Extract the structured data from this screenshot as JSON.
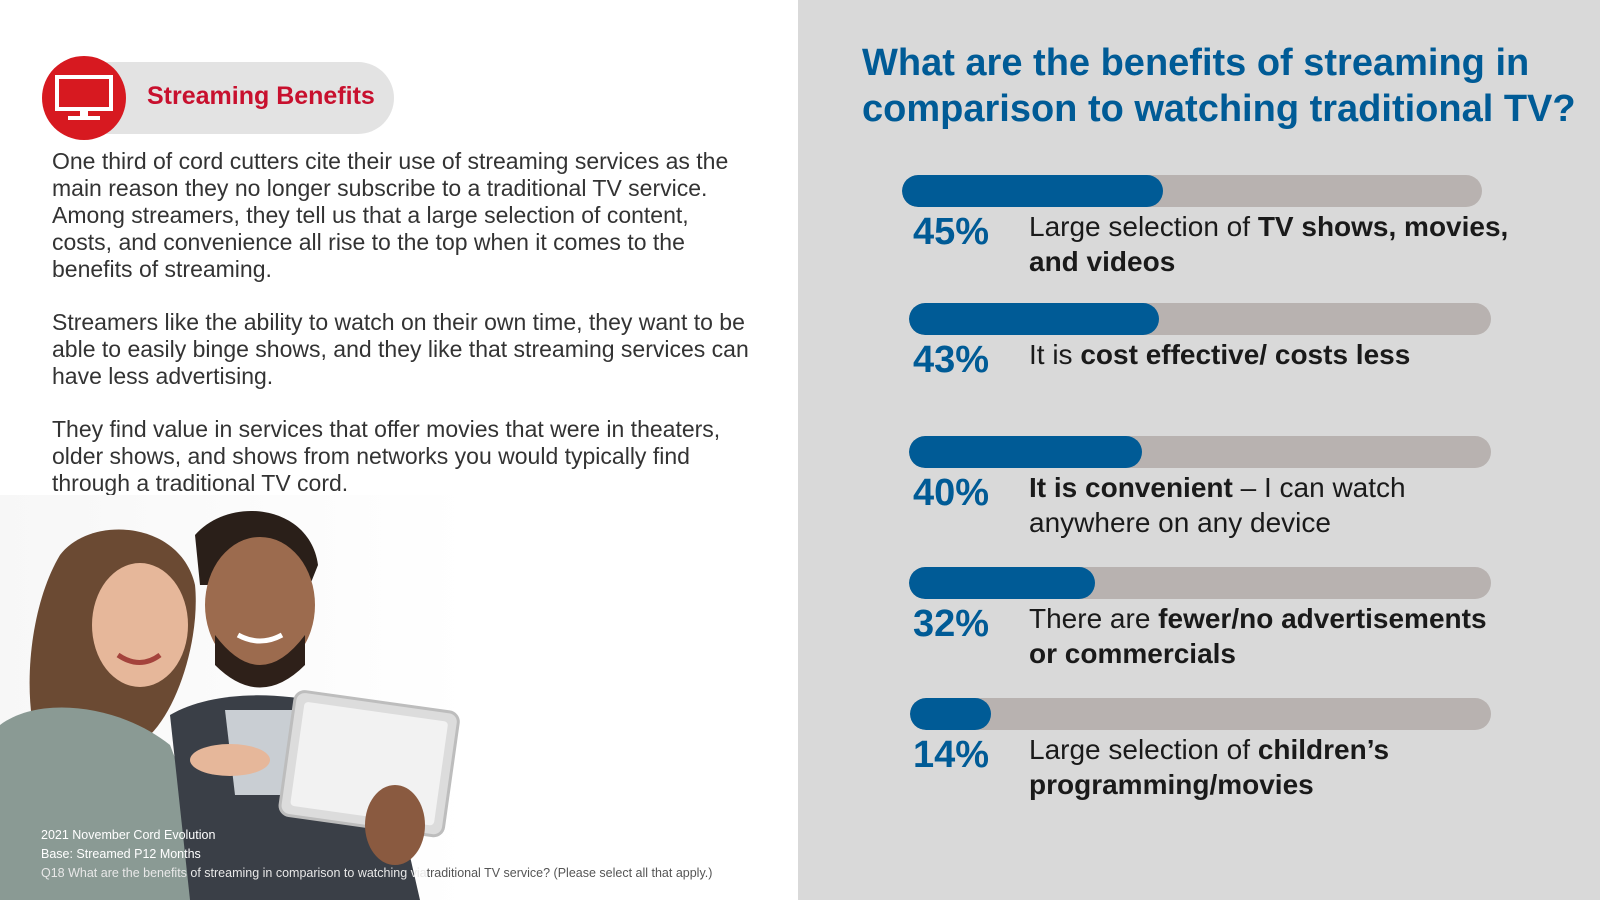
{
  "badge": {
    "title": "Streaming Benefits",
    "icon": "tv-icon",
    "color": "#d71920"
  },
  "body": {
    "paragraphs": [
      "One third of cord cutters cite their use of streaming services as the main reason they no longer subscribe to a traditional TV service.  Among streamers, they tell us that a large selection of content, costs, and convenience all rise to the top when it comes to the benefits of streaming.",
      "Streamers like the ability to watch on their own time, they want to be able to easily binge shows, and they like that streaming services can have less advertising.",
      "They find value in services that offer movies that were in theaters, older shows, and shows from networks you would typically find through a traditional TV cord."
    ]
  },
  "footnotes": {
    "source": "2021 November Cord Evolution",
    "base": "Base: Streamed P12 Months",
    "question_part1": "Q18 What are the benefits of streaming in comparison to watching via",
    "question_part2": "traditional TV service? (Please select all that apply.)"
  },
  "chart_data": {
    "type": "bar",
    "title": "What are the benefits of streaming in comparison to watching traditional TV?",
    "categories": [
      "Large selection of TV shows, movies, and videos",
      "It is cost effective/ costs less",
      "It is convenient – I can watch anywhere on any device",
      "There are fewer/no advertisements or commercials",
      "Large selection of children’s programming/movies"
    ],
    "values": [
      45,
      43,
      40,
      32,
      14
    ],
    "value_labels": [
      "45%",
      "43%",
      "40%",
      "32%",
      "14%"
    ],
    "label_segments": [
      [
        {
          "text": "Large selection of ",
          "bold": false
        },
        {
          "text": "TV shows, movies, and videos",
          "bold": true
        }
      ],
      [
        {
          "text": "It is ",
          "bold": false
        },
        {
          "text": "cost effective/ costs less",
          "bold": true
        }
      ],
      [
        {
          "text": "It is convenient",
          "bold": true
        },
        {
          "text": " – I can watch anywhere on any device",
          "bold": false
        }
      ],
      [
        {
          "text": "There are ",
          "bold": false
        },
        {
          "text": "fewer/no advertisements or commercials",
          "bold": true
        }
      ],
      [
        {
          "text": "Large selection of ",
          "bold": false
        },
        {
          "text": "children’s programming/movies",
          "bold": true
        }
      ]
    ],
    "ylim": [
      0,
      100
    ],
    "orientation": "horizontal",
    "colors": {
      "fill": "#005b96",
      "track": "#b8b2b0",
      "background": "#d9d9d9"
    },
    "grid": false,
    "legend": "none"
  }
}
